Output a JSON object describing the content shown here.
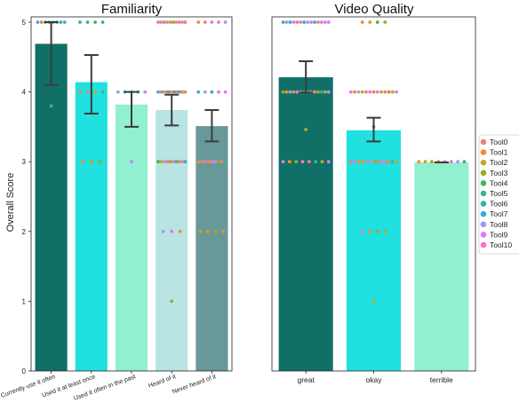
{
  "chart_data": [
    {
      "type": "bar",
      "title": "Familiarity",
      "xlabel": "",
      "ylabel": "Overall Score",
      "ylim": [
        0,
        5
      ],
      "yticks": [
        0,
        1,
        2,
        3,
        4,
        5
      ],
      "grid": false,
      "categories": [
        "Currently use it often",
        "Used it at least once",
        "Used it often in the past",
        "Heard of it",
        "Never heard of it"
      ],
      "values": [
        4.69,
        4.14,
        3.82,
        3.74,
        3.51
      ],
      "error_low": [
        4.1,
        3.69,
        3.5,
        3.52,
        3.29
      ],
      "error_high": [
        5.0,
        4.53,
        4.0,
        3.96,
        3.74
      ],
      "colors": [
        "#107068",
        "#20E0E0",
        "#90F0D0",
        "#B8E4E4",
        "#689898"
      ],
      "points": [
        [
          {
            "v": 5,
            "t": 7
          },
          {
            "v": 5,
            "t": 1
          },
          {
            "v": 5,
            "t": 5
          },
          {
            "v": 5,
            "t": 7
          },
          {
            "v": 5,
            "t": 2
          },
          {
            "v": 5,
            "t": 7
          },
          {
            "v": 5,
            "t": 6
          },
          {
            "v": 5,
            "t": 7
          },
          {
            "v": 3.8,
            "t": 5
          }
        ],
        [
          {
            "v": 5,
            "t": 5
          },
          {
            "v": 5,
            "t": 5
          },
          {
            "v": 5,
            "t": 4
          },
          {
            "v": 5,
            "t": 5
          },
          {
            "v": 4,
            "t": 1
          },
          {
            "v": 4,
            "t": 0
          },
          {
            "v": 4,
            "t": 2
          },
          {
            "v": 4,
            "t": 6
          },
          {
            "v": 3,
            "t": 1
          },
          {
            "v": 3,
            "t": 2
          },
          {
            "v": 3,
            "t": 3
          }
        ],
        [
          {
            "v": 4,
            "t": 8
          },
          {
            "v": 4,
            "t": 6
          },
          {
            "v": 4,
            "t": 7
          },
          {
            "v": 4,
            "t": 5
          },
          {
            "v": 4,
            "t": 9
          },
          {
            "v": 3,
            "t": 8
          }
        ],
        [
          {
            "v": 5,
            "t": 0
          },
          {
            "v": 5,
            "t": 9
          },
          {
            "v": 5,
            "t": 1
          },
          {
            "v": 5,
            "t": 8
          },
          {
            "v": 5,
            "t": 2
          },
          {
            "v": 5,
            "t": 3
          },
          {
            "v": 5,
            "t": 10
          },
          {
            "v": 5,
            "t": 0
          },
          {
            "v": 5,
            "t": 9
          },
          {
            "v": 5,
            "t": 1
          },
          {
            "v": 4,
            "t": 5
          },
          {
            "v": 4,
            "t": 9
          },
          {
            "v": 4,
            "t": 3
          },
          {
            "v": 4,
            "t": 8
          },
          {
            "v": 4,
            "t": 1
          },
          {
            "v": 4,
            "t": 6
          },
          {
            "v": 4,
            "t": 2
          },
          {
            "v": 4,
            "t": 10
          },
          {
            "v": 4,
            "t": 4
          },
          {
            "v": 4,
            "t": 0
          },
          {
            "v": 4,
            "t": 7
          },
          {
            "v": 4,
            "t": 3
          },
          {
            "v": 4,
            "t": 9
          },
          {
            "v": 4,
            "t": 1
          },
          {
            "v": 3,
            "t": 4
          },
          {
            "v": 3,
            "t": 2
          },
          {
            "v": 3,
            "t": 8
          },
          {
            "v": 3,
            "t": 0
          },
          {
            "v": 3,
            "t": 3
          },
          {
            "v": 3,
            "t": 10
          },
          {
            "v": 3,
            "t": 5
          },
          {
            "v": 3,
            "t": 1
          },
          {
            "v": 3,
            "t": 9
          },
          {
            "v": 3,
            "t": 6
          },
          {
            "v": 2,
            "t": 8
          },
          {
            "v": 2,
            "t": 10
          },
          {
            "v": 2,
            "t": 2
          },
          {
            "v": 1,
            "t": 3
          }
        ],
        [
          {
            "v": 5,
            "t": 1
          },
          {
            "v": 5,
            "t": 0
          },
          {
            "v": 5,
            "t": 9
          },
          {
            "v": 5,
            "t": 10
          },
          {
            "v": 5,
            "t": 8
          },
          {
            "v": 4,
            "t": 7
          },
          {
            "v": 4,
            "t": 8
          },
          {
            "v": 4,
            "t": 6
          },
          {
            "v": 4,
            "t": 10
          },
          {
            "v": 4,
            "t": 9
          },
          {
            "v": 3.4,
            "t": 7
          },
          {
            "v": 3,
            "t": 0
          },
          {
            "v": 3,
            "t": 2
          },
          {
            "v": 3,
            "t": 9
          },
          {
            "v": 3,
            "t": 1
          },
          {
            "v": 3,
            "t": 10
          },
          {
            "v": 3,
            "t": 8
          },
          {
            "v": 3,
            "t": 3
          },
          {
            "v": 3,
            "t": 0
          },
          {
            "v": 3,
            "t": 5
          },
          {
            "v": 2,
            "t": 2
          },
          {
            "v": 2,
            "t": 1
          },
          {
            "v": 2,
            "t": 3
          },
          {
            "v": 2,
            "t": 2
          }
        ]
      ]
    },
    {
      "type": "bar",
      "title": "Video Quality",
      "xlabel": "",
      "ylabel": "",
      "ylim": [
        0,
        5
      ],
      "categories": [
        "great",
        "okay",
        "terrible"
      ],
      "values": [
        4.21,
        3.45,
        2.99
      ],
      "error_low": [
        3.99,
        3.29,
        2.99
      ],
      "error_high": [
        4.44,
        3.63,
        2.99
      ],
      "colors": [
        "#107068",
        "#20E0E0",
        "#90F0D0"
      ],
      "points": [
        [
          {
            "v": 5,
            "t": 5
          },
          {
            "v": 5,
            "t": 8
          },
          {
            "v": 5,
            "t": 7
          },
          {
            "v": 5,
            "t": 9
          },
          {
            "v": 5,
            "t": 0
          },
          {
            "v": 5,
            "t": 10
          },
          {
            "v": 5,
            "t": 6
          },
          {
            "v": 5,
            "t": 8
          },
          {
            "v": 5,
            "t": 9
          },
          {
            "v": 5,
            "t": 7
          },
          {
            "v": 5,
            "t": 0
          },
          {
            "v": 5,
            "t": 10
          },
          {
            "v": 5,
            "t": 8
          },
          {
            "v": 5,
            "t": 9
          },
          {
            "v": 4,
            "t": 3
          },
          {
            "v": 4,
            "t": 1
          },
          {
            "v": 4,
            "t": 8
          },
          {
            "v": 4,
            "t": 2
          },
          {
            "v": 4,
            "t": 9
          },
          {
            "v": 4,
            "t": 0
          },
          {
            "v": 4,
            "t": 4
          },
          {
            "v": 4,
            "t": 7
          },
          {
            "v": 4,
            "t": 1
          },
          {
            "v": 4,
            "t": 10
          },
          {
            "v": 4,
            "t": 3
          },
          {
            "v": 4,
            "t": 6
          },
          {
            "v": 4,
            "t": 2
          },
          {
            "v": 4,
            "t": 8
          },
          {
            "v": 3.46,
            "t": 2
          },
          {
            "v": 3,
            "t": 9
          },
          {
            "v": 3,
            "t": 1
          },
          {
            "v": 3,
            "t": 3
          },
          {
            "v": 3,
            "t": 10
          },
          {
            "v": 3,
            "t": 0
          },
          {
            "v": 3,
            "t": 5
          },
          {
            "v": 3,
            "t": 2
          },
          {
            "v": 3,
            "t": 9
          }
        ],
        [
          {
            "v": 5,
            "t": 1
          },
          {
            "v": 5,
            "t": 2
          },
          {
            "v": 5,
            "t": 4
          },
          {
            "v": 5,
            "t": 3
          },
          {
            "v": 4,
            "t": 9
          },
          {
            "v": 4,
            "t": 1
          },
          {
            "v": 4,
            "t": 8
          },
          {
            "v": 4,
            "t": 2
          },
          {
            "v": 4,
            "t": 0
          },
          {
            "v": 4,
            "t": 10
          },
          {
            "v": 4,
            "t": 1
          },
          {
            "v": 4,
            "t": 9
          },
          {
            "v": 4,
            "t": 2
          },
          {
            "v": 4,
            "t": 0
          },
          {
            "v": 4,
            "t": 3
          },
          {
            "v": 4,
            "t": 1
          },
          {
            "v": 4,
            "t": 8
          },
          {
            "v": 3.5,
            "t": 4
          },
          {
            "v": 3,
            "t": 0
          },
          {
            "v": 3,
            "t": 9
          },
          {
            "v": 3,
            "t": 1
          },
          {
            "v": 3,
            "t": 2
          },
          {
            "v": 3,
            "t": 8
          },
          {
            "v": 3,
            "t": 10
          },
          {
            "v": 3,
            "t": 3
          },
          {
            "v": 3,
            "t": 0
          },
          {
            "v": 3,
            "t": 9
          },
          {
            "v": 3,
            "t": 1
          },
          {
            "v": 3,
            "t": 5
          },
          {
            "v": 3,
            "t": 2
          },
          {
            "v": 2,
            "t": 9
          },
          {
            "v": 2,
            "t": 1
          },
          {
            "v": 2,
            "t": 3
          },
          {
            "v": 2,
            "t": 2
          },
          {
            "v": 1,
            "t": 2
          }
        ],
        [
          {
            "v": 3,
            "t": 1
          },
          {
            "v": 3,
            "t": 2
          },
          {
            "v": 3,
            "t": 3
          },
          {
            "v": 3,
            "t": 1
          },
          {
            "v": 3,
            "t": 9
          },
          {
            "v": 3,
            "t": 10
          },
          {
            "v": 3,
            "t": 8
          },
          {
            "v": 3,
            "t": 4
          }
        ]
      ]
    }
  ],
  "legend": {
    "placement": "right",
    "entries": [
      {
        "name": "Tool0",
        "color": "#F07F7F"
      },
      {
        "name": "Tool1",
        "color": "#F08C30"
      },
      {
        "name": "Tool2",
        "color": "#C4A52B"
      },
      {
        "name": "Tool3",
        "color": "#9AA92A"
      },
      {
        "name": "Tool4",
        "color": "#42B555"
      },
      {
        "name": "Tool5",
        "color": "#38B592"
      },
      {
        "name": "Tool6",
        "color": "#35B1AD"
      },
      {
        "name": "Tool7",
        "color": "#3EA7D8"
      },
      {
        "name": "Tool8",
        "color": "#A796EE"
      },
      {
        "name": "Tool9",
        "color": "#DB7CE5"
      },
      {
        "name": "Tool10",
        "color": "#F078C4"
      }
    ]
  },
  "error_bar_color": "#3C3C3C"
}
